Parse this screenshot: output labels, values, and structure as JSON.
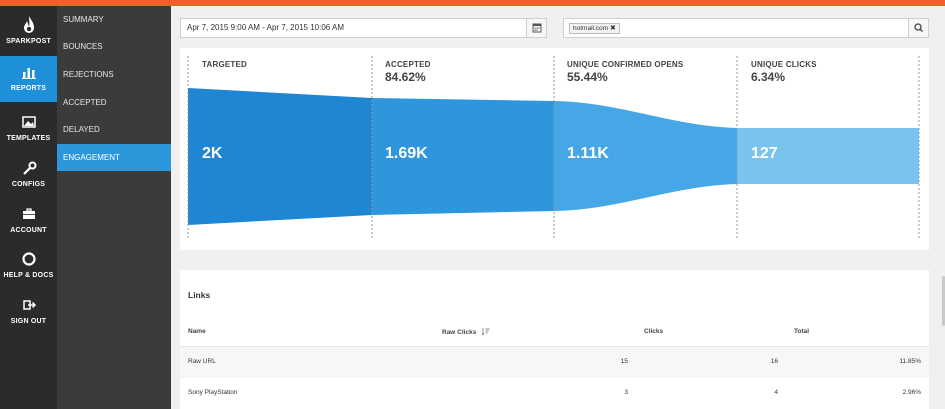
{
  "brand": {
    "name": "SPARKPOST",
    "accent": "#e8622a",
    "rail_active": "#1e8fd9"
  },
  "rail": [
    {
      "name": "reports",
      "label": "REPORTS",
      "icon": "bar-chart-icon",
      "active": true
    },
    {
      "name": "templates",
      "label": "TEMPLATES",
      "icon": "image-icon",
      "active": false
    },
    {
      "name": "configs",
      "label": "CONFIGS",
      "icon": "wrench-icon",
      "active": false
    },
    {
      "name": "account",
      "label": "ACCOUNT",
      "icon": "briefcase-icon",
      "active": false
    },
    {
      "name": "help",
      "label": "HELP & DOCS",
      "icon": "lifebuoy-icon",
      "active": false
    },
    {
      "name": "signout",
      "label": "SIGN OUT",
      "icon": "sign-out-icon",
      "active": false
    }
  ],
  "subnav": [
    {
      "label": "SUMMARY",
      "active": false
    },
    {
      "label": "BOUNCES",
      "active": false
    },
    {
      "label": "REJECTIONS",
      "active": false
    },
    {
      "label": "ACCEPTED",
      "active": false
    },
    {
      "label": "DELAYED",
      "active": false
    },
    {
      "label": "ENGAGEMENT",
      "active": true
    }
  ],
  "filters": {
    "date_range": "Apr 7, 2015 9:00 AM - Apr 7, 2015 10:06 AM",
    "chips": [
      "hotmail.com"
    ]
  },
  "funnel": {
    "stages": [
      {
        "label": "TARGETED",
        "percent": "",
        "value": "2K",
        "color": "#1f86d3"
      },
      {
        "label": "ACCEPTED",
        "percent": "84.62%",
        "value": "1.69K",
        "color": "#2d96dc"
      },
      {
        "label": "UNIQUE CONFIRMED OPENS",
        "percent": "55.44%",
        "value": "1.11K",
        "color": "#45a7e6"
      },
      {
        "label": "UNIQUE CLICKS",
        "percent": "6.34%",
        "value": "127",
        "color": "#79c3ef"
      }
    ]
  },
  "links": {
    "title": "Links",
    "columns": [
      "Name",
      "Raw Clicks",
      "Clicks",
      "Total"
    ],
    "rows": [
      {
        "name": "Raw URL",
        "raw_clicks": "15",
        "clicks": "16",
        "total": "11.85%"
      },
      {
        "name": "Sony PlayStation",
        "raw_clicks": "3",
        "clicks": "4",
        "total": "2.96%"
      }
    ]
  }
}
